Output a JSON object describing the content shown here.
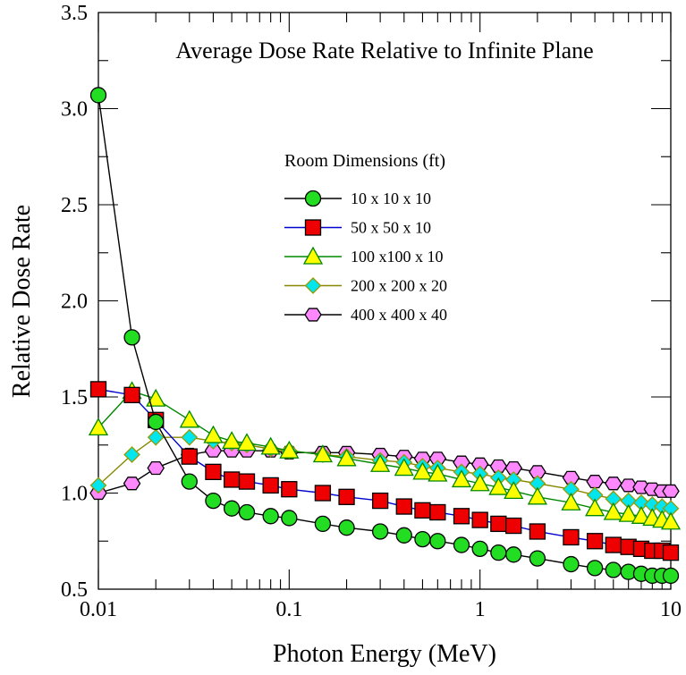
{
  "chart_data": {
    "type": "line",
    "title": "Average Dose Rate Relative to Infinite Plane",
    "xlabel": "Photon Energy (MeV)",
    "ylabel": "Relative Dose Rate",
    "xscale": "log",
    "xlim": [
      0.01,
      10
    ],
    "ylim": [
      0.5,
      3.5
    ],
    "xticks": [
      0.01,
      0.1,
      1,
      10
    ],
    "xtick_labels": [
      "0.01",
      "0.1",
      "1",
      "10"
    ],
    "yticks": [
      0.5,
      1.0,
      1.5,
      2.0,
      2.5,
      3.0,
      3.5
    ],
    "ytick_labels": [
      "0.5",
      "1.0",
      "1.5",
      "2.0",
      "2.5",
      "3.0",
      "3.5"
    ],
    "grid": false,
    "legend_title": "Room Dimensions (ft)",
    "legend_position": "center-right",
    "x": [
      0.01,
      0.015,
      0.02,
      0.03,
      0.04,
      0.05,
      0.06,
      0.08,
      0.1,
      0.15,
      0.2,
      0.3,
      0.4,
      0.5,
      0.6,
      0.8,
      1,
      1.25,
      1.5,
      2,
      3,
      4,
      5,
      6,
      7,
      8,
      9,
      10
    ],
    "series": [
      {
        "name": "10 x 10 x 10",
        "marker": "circle",
        "line_color": "#000000",
        "fill_color": "#22dd22",
        "values": [
          3.07,
          1.81,
          1.37,
          1.06,
          0.96,
          0.92,
          0.9,
          0.88,
          0.87,
          0.84,
          0.82,
          0.8,
          0.78,
          0.76,
          0.75,
          0.73,
          0.71,
          0.69,
          0.68,
          0.66,
          0.63,
          0.61,
          0.6,
          0.59,
          0.58,
          0.57,
          0.57,
          0.57
        ]
      },
      {
        "name": "50 x 50 x 10",
        "marker": "square",
        "line_color": "#0000cc",
        "fill_color": "#ee0000",
        "values": [
          1.54,
          1.51,
          1.38,
          1.19,
          1.11,
          1.07,
          1.06,
          1.04,
          1.02,
          1.0,
          0.98,
          0.96,
          0.93,
          0.91,
          0.9,
          0.88,
          0.86,
          0.84,
          0.83,
          0.8,
          0.77,
          0.75,
          0.73,
          0.72,
          0.71,
          0.7,
          0.7,
          0.69
        ]
      },
      {
        "name": "100 x100 x 10",
        "marker": "triangle",
        "line_color": "#008800",
        "fill_color": "#ffff00",
        "values": [
          1.34,
          1.53,
          1.49,
          1.38,
          1.3,
          1.27,
          1.26,
          1.24,
          1.22,
          1.2,
          1.18,
          1.15,
          1.13,
          1.11,
          1.1,
          1.07,
          1.05,
          1.03,
          1.01,
          0.98,
          0.95,
          0.92,
          0.9,
          0.89,
          0.88,
          0.87,
          0.86,
          0.85
        ]
      },
      {
        "name": "200 x 200 x 20",
        "marker": "diamond",
        "line_color": "#888800",
        "fill_color": "#00e5ee",
        "values": [
          1.04,
          1.2,
          1.29,
          1.29,
          1.27,
          1.26,
          1.25,
          1.23,
          1.22,
          1.2,
          1.19,
          1.17,
          1.16,
          1.14,
          1.13,
          1.11,
          1.1,
          1.08,
          1.07,
          1.05,
          1.02,
          0.99,
          0.97,
          0.96,
          0.95,
          0.94,
          0.93,
          0.92
        ]
      },
      {
        "name": "400 x 400 x 40",
        "marker": "hexagon",
        "line_color": "#000000",
        "fill_color": "#ff88ff",
        "values": [
          1.0,
          1.05,
          1.13,
          1.2,
          1.22,
          1.22,
          1.22,
          1.22,
          1.21,
          1.21,
          1.21,
          1.2,
          1.19,
          1.18,
          1.18,
          1.16,
          1.15,
          1.14,
          1.13,
          1.11,
          1.08,
          1.06,
          1.05,
          1.04,
          1.03,
          1.02,
          1.01,
          1.01
        ]
      }
    ]
  }
}
